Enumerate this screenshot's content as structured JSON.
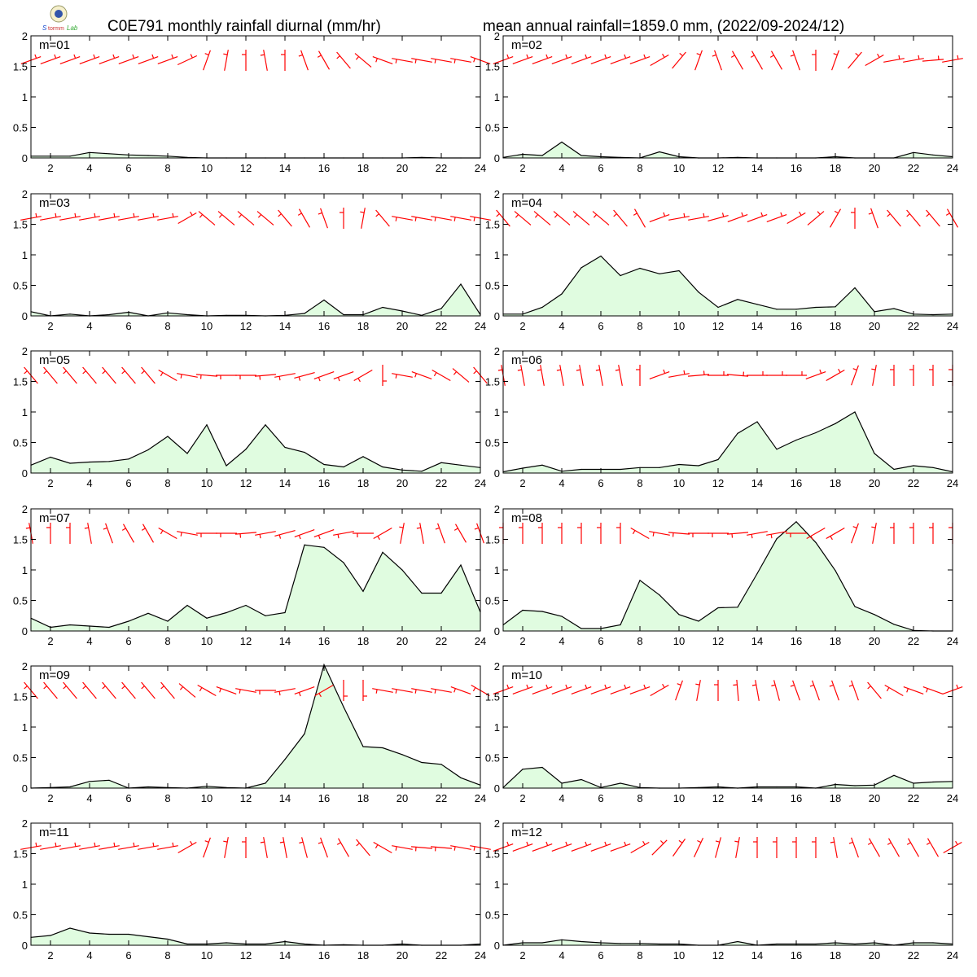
{
  "header": {
    "left_title": "C0E791 monthly rainfall diurnal (mm/hr)",
    "right_title": "mean annual rainfall=1859.0 mm, (2022/09-2024/12)"
  },
  "colors": {
    "rain_fill": "#e0fce0",
    "rain_line": "#000000",
    "wind_barb": "#ff0000",
    "axis": "#000000"
  },
  "icons": {
    "logo": "lab-logo-icon"
  },
  "chart_data": {
    "type": "area",
    "x": [
      1,
      2,
      3,
      4,
      5,
      6,
      7,
      8,
      9,
      10,
      11,
      12,
      13,
      14,
      15,
      16,
      17,
      18,
      19,
      20,
      21,
      22,
      23,
      24
    ],
    "xlim": [
      1,
      24
    ],
    "xticks": [
      2,
      4,
      6,
      8,
      10,
      12,
      14,
      16,
      18,
      20,
      22,
      24
    ],
    "ylim": [
      0,
      2
    ],
    "yticks": [
      0,
      0.5,
      1,
      1.5,
      2
    ],
    "ytick_labels": [
      "0",
      "0.5",
      "1",
      "1.5",
      "2"
    ],
    "grid": false,
    "panels": [
      {
        "label": "m=01",
        "values": [
          0.03,
          0.03,
          0.03,
          0.09,
          0.07,
          0.05,
          0.04,
          0.03,
          0.01,
          0.0,
          0.0,
          0.0,
          0.0,
          0.0,
          0.0,
          0.0,
          0.0,
          0.0,
          0.0,
          0.0,
          0.01,
          0.0,
          0.0,
          0.0
        ],
        "wind_dir": [
          250,
          250,
          250,
          250,
          250,
          250,
          250,
          250,
          245,
          200,
          190,
          180,
          170,
          180,
          160,
          150,
          140,
          130,
          110,
          100,
          100,
          100,
          100,
          110
        ]
      },
      {
        "label": "m=02",
        "values": [
          0.01,
          0.06,
          0.04,
          0.26,
          0.04,
          0.02,
          0.01,
          0.0,
          0.1,
          0.02,
          0.0,
          0.0,
          0.01,
          0.0,
          0.0,
          0.0,
          0.0,
          0.02,
          0.0,
          0.0,
          0.0,
          0.09,
          0.05,
          0.02
        ],
        "wind_dir": [
          250,
          250,
          250,
          250,
          250,
          250,
          250,
          250,
          240,
          220,
          200,
          160,
          150,
          150,
          150,
          160,
          180,
          200,
          220,
          240,
          260,
          260,
          265,
          260
        ]
      },
      {
        "label": "m=03",
        "values": [
          0.07,
          0.0,
          0.03,
          0.0,
          0.02,
          0.06,
          0.0,
          0.05,
          0.02,
          0.0,
          0.01,
          0.01,
          0.0,
          0.01,
          0.04,
          0.26,
          0.02,
          0.02,
          0.14,
          0.08,
          0.01,
          0.12,
          0.52,
          0.02
        ],
        "wind_dir": [
          260,
          260,
          260,
          260,
          260,
          260,
          260,
          260,
          240,
          130,
          130,
          130,
          130,
          140,
          150,
          160,
          180,
          190,
          140,
          100,
          100,
          100,
          100,
          100
        ]
      },
      {
        "label": "m=04",
        "values": [
          0.03,
          0.03,
          0.14,
          0.36,
          0.79,
          0.98,
          0.66,
          0.78,
          0.69,
          0.74,
          0.39,
          0.14,
          0.27,
          0.19,
          0.11,
          0.11,
          0.14,
          0.15,
          0.46,
          0.07,
          0.12,
          0.03,
          0.02,
          0.03
        ],
        "wind_dir": [
          140,
          130,
          130,
          130,
          130,
          130,
          140,
          150,
          250,
          260,
          260,
          255,
          250,
          250,
          250,
          240,
          230,
          210,
          180,
          160,
          140,
          140,
          140,
          150
        ]
      },
      {
        "label": "m=05",
        "values": [
          0.13,
          0.26,
          0.16,
          0.18,
          0.19,
          0.23,
          0.38,
          0.6,
          0.32,
          0.79,
          0.12,
          0.39,
          0.79,
          0.42,
          0.34,
          0.14,
          0.1,
          0.27,
          0.1,
          0.05,
          0.03,
          0.17,
          0.13,
          0.09
        ],
        "wind_dir": [
          140,
          140,
          140,
          140,
          140,
          140,
          140,
          120,
          100,
          95,
          90,
          90,
          85,
          80,
          75,
          70,
          70,
          60,
          0,
          100,
          110,
          120,
          130,
          140
        ]
      },
      {
        "label": "m=06",
        "values": [
          0.02,
          0.08,
          0.13,
          0.03,
          0.06,
          0.06,
          0.06,
          0.09,
          0.09,
          0.14,
          0.12,
          0.22,
          0.65,
          0.84,
          0.39,
          0.54,
          0.66,
          0.81,
          1.0,
          0.32,
          0.06,
          0.12,
          0.09,
          0.02
        ],
        "wind_dir": [
          170,
          170,
          170,
          170,
          170,
          170,
          170,
          180,
          250,
          260,
          265,
          270,
          275,
          270,
          270,
          270,
          250,
          240,
          200,
          190,
          180,
          180,
          180,
          180
        ]
      },
      {
        "label": "m=07",
        "values": [
          0.21,
          0.06,
          0.1,
          0.08,
          0.06,
          0.16,
          0.29,
          0.16,
          0.42,
          0.21,
          0.3,
          0.42,
          0.25,
          0.3,
          1.41,
          1.37,
          1.12,
          0.65,
          1.29,
          1.0,
          0.62,
          0.62,
          1.08,
          0.31
        ],
        "wind_dir": [
          170,
          180,
          180,
          170,
          160,
          150,
          150,
          120,
          100,
          90,
          90,
          85,
          80,
          75,
          70,
          70,
          80,
          90,
          60,
          190,
          170,
          160,
          150,
          160
        ]
      },
      {
        "label": "m=08",
        "values": [
          0.1,
          0.34,
          0.32,
          0.24,
          0.04,
          0.04,
          0.1,
          0.83,
          0.59,
          0.27,
          0.16,
          0.38,
          0.39,
          0.94,
          1.51,
          1.79,
          1.45,
          0.99,
          0.4,
          0.27,
          0.11,
          0.01,
          0.0,
          0.0
        ],
        "wind_dir": [
          180,
          180,
          180,
          180,
          180,
          180,
          180,
          120,
          100,
          95,
          90,
          90,
          85,
          80,
          80,
          90,
          60,
          60,
          200,
          190,
          180,
          180,
          180,
          180
        ]
      },
      {
        "label": "m=09",
        "values": [
          0.0,
          0.01,
          0.02,
          0.11,
          0.13,
          0.0,
          0.02,
          0.01,
          0.0,
          0.03,
          0.01,
          0.0,
          0.08,
          0.47,
          0.89,
          2.02,
          1.33,
          0.68,
          0.66,
          0.55,
          0.42,
          0.39,
          0.17,
          0.05
        ],
        "wind_dir": [
          140,
          140,
          140,
          140,
          140,
          140,
          140,
          140,
          130,
          120,
          110,
          100,
          90,
          80,
          70,
          60,
          0,
          0,
          100,
          100,
          100,
          100,
          110,
          120
        ]
      },
      {
        "label": "m=10",
        "values": [
          0.01,
          0.31,
          0.34,
          0.08,
          0.14,
          0.01,
          0.08,
          0.01,
          0.0,
          0.0,
          0.01,
          0.02,
          0.0,
          0.02,
          0.02,
          0.02,
          0.0,
          0.06,
          0.04,
          0.05,
          0.21,
          0.08,
          0.1,
          0.11
        ],
        "wind_dir": [
          250,
          250,
          250,
          250,
          250,
          250,
          250,
          250,
          240,
          200,
          190,
          180,
          175,
          170,
          165,
          160,
          160,
          160,
          160,
          140,
          120,
          110,
          110,
          250
        ]
      },
      {
        "label": "m=11",
        "values": [
          0.13,
          0.16,
          0.28,
          0.2,
          0.18,
          0.18,
          0.14,
          0.1,
          0.02,
          0.02,
          0.04,
          0.02,
          0.02,
          0.06,
          0.02,
          0.0,
          0.01,
          0.0,
          0.0,
          0.02,
          0.0,
          0.0,
          0.0,
          0.02
        ],
        "wind_dir": [
          260,
          260,
          260,
          260,
          260,
          260,
          260,
          260,
          240,
          200,
          190,
          180,
          170,
          170,
          165,
          160,
          150,
          140,
          120,
          100,
          95,
          95,
          100,
          100
        ]
      },
      {
        "label": "m=12",
        "values": [
          0.0,
          0.04,
          0.04,
          0.09,
          0.06,
          0.04,
          0.03,
          0.03,
          0.02,
          0.02,
          0.0,
          0.0,
          0.06,
          0.0,
          0.02,
          0.02,
          0.02,
          0.04,
          0.02,
          0.04,
          0.0,
          0.04,
          0.04,
          0.02
        ],
        "wind_dir": [
          250,
          250,
          250,
          250,
          250,
          250,
          250,
          240,
          225,
          215,
          205,
          195,
          190,
          180,
          180,
          180,
          180,
          170,
          160,
          150,
          150,
          150,
          150,
          240
        ]
      }
    ]
  }
}
